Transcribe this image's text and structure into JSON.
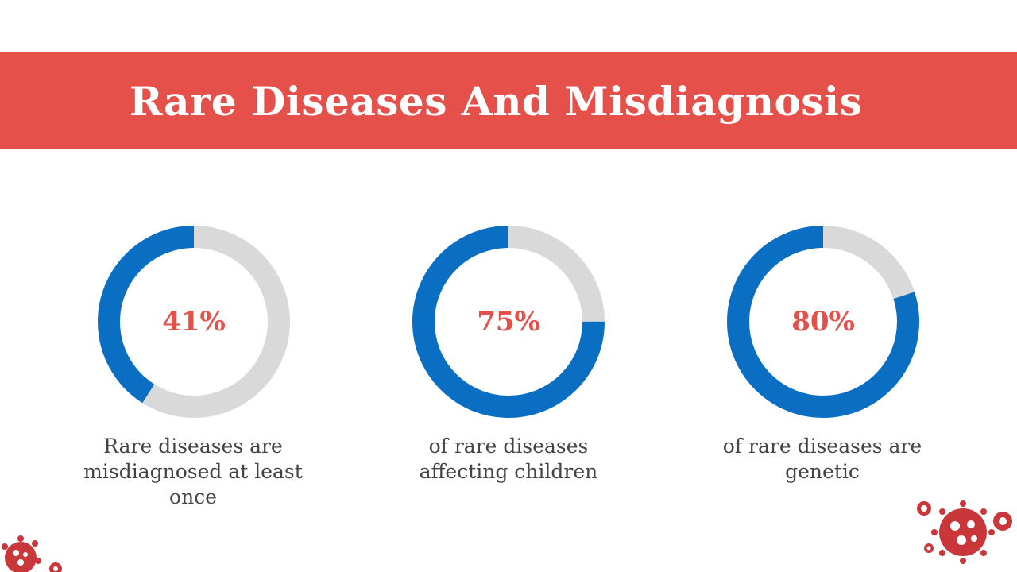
{
  "title": "Rare Diseases And Misdiagnosis",
  "colors": {
    "banner": "#e5504a",
    "accent_text": "#e5504a",
    "filled": "#0a6fc2",
    "remaining": "#d9d9d9",
    "virus": "#c9373a"
  },
  "chart_data": [
    {
      "type": "pie",
      "label": "41%",
      "caption": "Rare diseases are misdiagnosed at least once",
      "slices": [
        {
          "name": "filled",
          "value": 41
        },
        {
          "name": "remaining",
          "value": 59
        }
      ]
    },
    {
      "type": "pie",
      "label": "75%",
      "caption": "of rare diseases affecting children",
      "slices": [
        {
          "name": "filled",
          "value": 75
        },
        {
          "name": "remaining",
          "value": 25
        }
      ]
    },
    {
      "type": "pie",
      "label": "80%",
      "caption": "of rare diseases are genetic",
      "slices": [
        {
          "name": "filled",
          "value": 80
        },
        {
          "name": "remaining",
          "value": 20
        }
      ]
    }
  ],
  "decorations": {
    "bottom_left_icon": "virus-cluster-icon",
    "bottom_right_icon": "virus-cluster-icon"
  }
}
